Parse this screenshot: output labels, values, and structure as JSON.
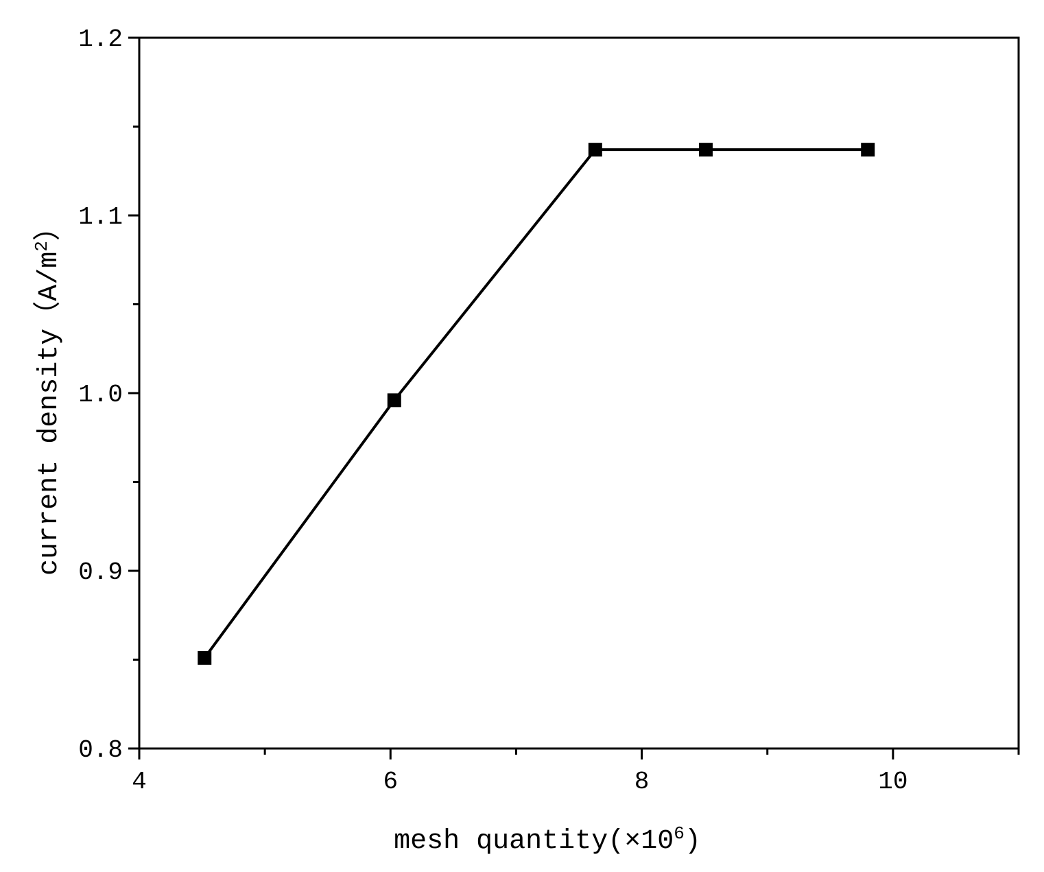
{
  "chart_data": {
    "type": "line",
    "title": "",
    "xlabel": "mesh quantity(×10",
    "xlabel_sup": "6",
    "xlabel_end": ")",
    "ylabel": "current density（A/m",
    "ylabel_sup": "2",
    "ylabel_end": "）",
    "xlim": [
      4,
      11
    ],
    "ylim": [
      0.8,
      1.2
    ],
    "x_ticks": [
      4,
      6,
      8,
      10
    ],
    "x_tick_labels": [
      "4",
      "6",
      "8",
      "10"
    ],
    "x_minor_ticks": [
      5,
      7,
      9,
      11
    ],
    "y_ticks": [
      0.8,
      0.9,
      1.0,
      1.1,
      1.2
    ],
    "y_tick_labels": [
      "0.8",
      "0.9",
      "1.0",
      "1.1",
      "1.2"
    ],
    "y_minor_ticks": [
      0.85,
      0.95,
      1.05,
      1.15
    ],
    "grid": false,
    "series": [
      {
        "marker": "square",
        "color": "#000000",
        "x": [
          4.52,
          6.03,
          7.63,
          8.51,
          9.8
        ],
        "y": [
          0.851,
          0.996,
          1.137,
          1.137,
          1.137
        ]
      }
    ]
  }
}
